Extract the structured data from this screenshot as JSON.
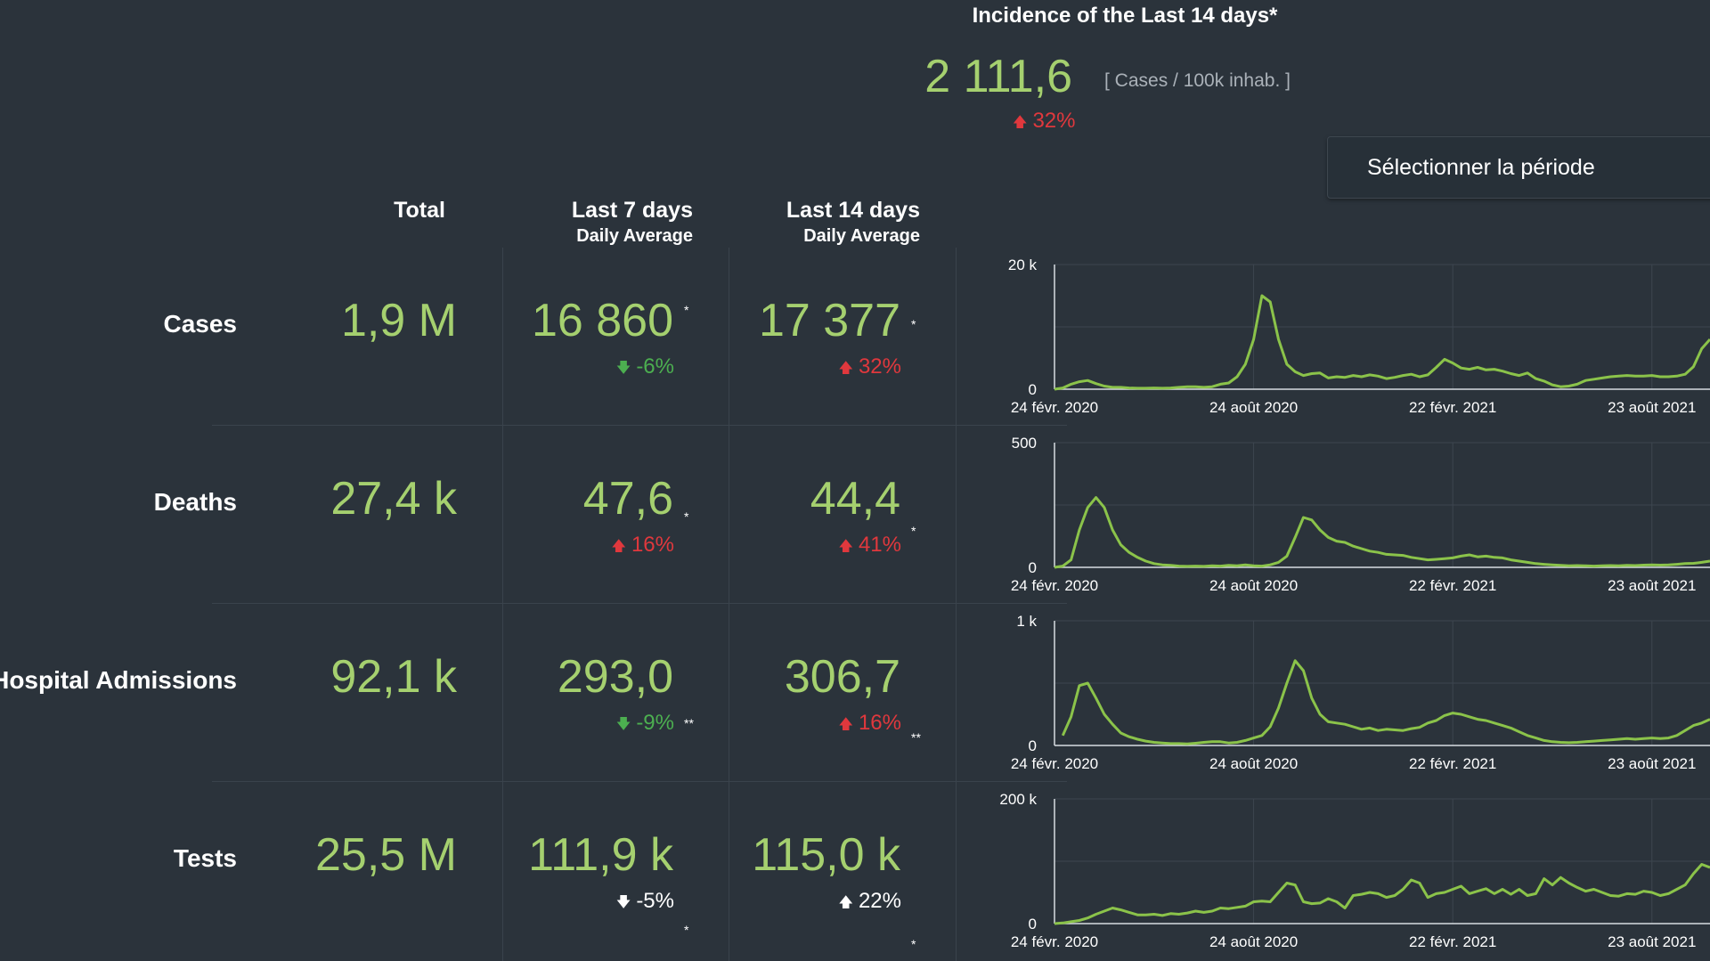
{
  "incidence": {
    "title": "Incidence of the Last 14 days*",
    "value": "2 111,6",
    "unit": "[ Cases / 100k inhab. ]",
    "change": "32%",
    "change_dir": "up"
  },
  "period_button": {
    "label": "Sélectionner la période"
  },
  "columns": {
    "total": "Total",
    "last7": {
      "title": "Last 7 days",
      "subtitle": "Daily Average"
    },
    "last14": {
      "title": "Last 14 days",
      "subtitle": "Daily Average"
    }
  },
  "rows": [
    {
      "label": "Cases",
      "total": "1,9 M",
      "last7": {
        "value": "16 860",
        "mark": "*",
        "change": "-6%"
      },
      "last14": {
        "value": "17 377",
        "mark": "*",
        "change": "32%"
      }
    },
    {
      "label": "Deaths",
      "total": "27,4 k",
      "last7": {
        "value": "47,6",
        "mark": "*",
        "change": "16%"
      },
      "last14": {
        "value": "44,4",
        "mark": "*",
        "change": "41%"
      }
    },
    {
      "label": "Hospital Admissions",
      "total": "92,1 k",
      "last7": {
        "value": "293,0",
        "mark": "**",
        "change": "-9%"
      },
      "last14": {
        "value": "306,7",
        "mark": "**",
        "change": "16%"
      }
    },
    {
      "label": "Tests",
      "total": "25,5 M",
      "last7": {
        "value": "111,9 k",
        "mark": "*",
        "change": "-5%"
      },
      "last14": {
        "value": "115,0 k",
        "mark": "*",
        "change": "22%"
      }
    }
  ],
  "colors": {
    "background": "#2b333b",
    "value_green": "#a5d06f",
    "up_red": "#e0383d",
    "down_green": "#4caf50",
    "line": "#8bc34a"
  },
  "chart_data": [
    {
      "type": "line",
      "name": "Cases",
      "ylim": [
        0,
        20000
      ],
      "yticks": [
        "20 k",
        "0"
      ],
      "xticks": [
        "24 févr. 2020",
        "24 août 2020",
        "22 févr. 2021",
        "23 août 2021"
      ],
      "x": [
        0,
        2,
        4,
        6,
        8,
        10,
        12,
        14,
        16,
        18,
        20,
        22,
        24,
        26,
        28,
        30,
        32,
        34,
        36,
        38,
        40,
        42,
        44,
        46,
        48,
        50,
        52,
        54,
        56,
        58,
        60,
        62,
        64,
        66,
        68,
        70,
        72,
        74,
        76,
        78,
        80,
        82,
        84,
        86,
        88,
        90,
        92,
        94,
        96,
        98,
        100,
        102,
        104,
        106,
        108,
        110,
        112,
        114,
        116,
        118,
        120,
        122,
        124,
        126,
        128,
        130,
        132,
        134,
        136,
        138,
        140,
        142,
        144,
        146,
        148,
        150,
        152,
        154,
        156,
        158
      ],
      "values": [
        0,
        200,
        800,
        1200,
        1400,
        900,
        500,
        300,
        300,
        200,
        150,
        150,
        200,
        150,
        200,
        300,
        400,
        400,
        300,
        400,
        800,
        1000,
        2000,
        4000,
        8000,
        15000,
        14000,
        8000,
        4000,
        2800,
        2200,
        2500,
        2600,
        1800,
        2000,
        1900,
        2200,
        2000,
        2300,
        2100,
        1700,
        1900,
        2200,
        2400,
        2000,
        2300,
        3500,
        4800,
        4200,
        3400,
        3200,
        3500,
        3100,
        3200,
        2900,
        2500,
        2200,
        2600,
        1700,
        1300,
        700,
        400,
        500,
        800,
        1400,
        1600,
        1800,
        2000,
        2100,
        2200,
        2100,
        2100,
        2200,
        2000,
        2000,
        2100,
        2400,
        3600,
        6500,
        8000
      ]
    },
    {
      "type": "line",
      "name": "Deaths",
      "ylim": [
        0,
        500
      ],
      "yticks": [
        "500",
        "0"
      ],
      "xticks": [
        "24 févr. 2020",
        "24 août 2020",
        "22 févr. 2021",
        "23 août 2021"
      ],
      "x": [
        0,
        2,
        4,
        6,
        8,
        10,
        12,
        14,
        16,
        18,
        20,
        22,
        24,
        26,
        28,
        30,
        32,
        34,
        36,
        38,
        40,
        42,
        44,
        46,
        48,
        50,
        52,
        54,
        56,
        58,
        60,
        62,
        64,
        66,
        68,
        70,
        72,
        74,
        76,
        78,
        80,
        82,
        84,
        86,
        88,
        90,
        92,
        94,
        96,
        98,
        100,
        102,
        104,
        106,
        108,
        110,
        112,
        114,
        116,
        118,
        120,
        122,
        124,
        126,
        128,
        130,
        132,
        134,
        136,
        138,
        140,
        142,
        144,
        146,
        148,
        150,
        152,
        154,
        156,
        158
      ],
      "values": [
        0,
        5,
        30,
        150,
        240,
        280,
        240,
        150,
        90,
        60,
        40,
        25,
        15,
        10,
        8,
        5,
        4,
        5,
        4,
        6,
        5,
        8,
        6,
        10,
        6,
        5,
        10,
        20,
        45,
        120,
        200,
        190,
        150,
        120,
        105,
        100,
        85,
        75,
        65,
        60,
        52,
        50,
        48,
        40,
        35,
        30,
        32,
        35,
        38,
        45,
        50,
        42,
        45,
        40,
        38,
        30,
        25,
        20,
        15,
        12,
        10,
        8,
        6,
        7,
        6,
        5,
        6,
        7,
        6,
        8,
        7,
        9,
        10,
        9,
        10,
        12,
        15,
        16,
        20,
        25
      ]
    },
    {
      "type": "line",
      "name": "Hospital Admissions",
      "ylim": [
        0,
        1000
      ],
      "yticks": [
        "1 k",
        "0"
      ],
      "xticks": [
        "24 févr. 2020",
        "24 août 2020",
        "22 févr. 2021",
        "23 août 2021"
      ],
      "x": [
        2,
        4,
        6,
        8,
        10,
        12,
        14,
        16,
        18,
        20,
        22,
        24,
        26,
        28,
        30,
        32,
        34,
        36,
        38,
        40,
        42,
        44,
        46,
        48,
        50,
        52,
        54,
        56,
        58,
        60,
        62,
        64,
        66,
        68,
        70,
        72,
        74,
        76,
        78,
        80,
        82,
        84,
        86,
        88,
        90,
        92,
        94,
        96,
        98,
        100,
        102,
        104,
        106,
        108,
        110,
        112,
        114,
        116,
        118,
        120,
        122,
        124,
        126,
        128,
        130,
        132,
        134,
        136,
        138,
        140,
        142,
        144,
        146,
        148,
        150,
        152,
        154,
        156,
        158
      ],
      "values": [
        80,
        230,
        480,
        500,
        380,
        250,
        170,
        100,
        70,
        50,
        35,
        25,
        20,
        15,
        15,
        12,
        18,
        25,
        30,
        30,
        20,
        25,
        40,
        60,
        80,
        150,
        300,
        500,
        680,
        600,
        380,
        250,
        190,
        180,
        170,
        150,
        130,
        140,
        120,
        130,
        125,
        120,
        135,
        145,
        180,
        200,
        240,
        260,
        250,
        230,
        210,
        200,
        180,
        160,
        140,
        110,
        80,
        60,
        40,
        30,
        25,
        22,
        25,
        30,
        35,
        40,
        45,
        50,
        55,
        50,
        55,
        60,
        55,
        60,
        80,
        120,
        160,
        180,
        210
      ]
    },
    {
      "type": "line",
      "name": "Tests",
      "ylim": [
        0,
        200000
      ],
      "yticks": [
        "200 k",
        "0"
      ],
      "xticks": [
        "24 févr. 2020",
        "24 août 2020",
        "22 févr. 2021",
        "23 août 2021"
      ],
      "x": [
        0,
        2,
        4,
        6,
        8,
        10,
        12,
        14,
        16,
        18,
        20,
        22,
        24,
        26,
        28,
        30,
        32,
        34,
        36,
        38,
        40,
        42,
        44,
        46,
        48,
        50,
        52,
        54,
        56,
        58,
        60,
        62,
        64,
        66,
        68,
        70,
        72,
        74,
        76,
        78,
        80,
        82,
        84,
        86,
        88,
        90,
        92,
        94,
        96,
        98,
        100,
        102,
        104,
        106,
        108,
        110,
        112,
        114,
        116,
        118,
        120,
        122,
        124,
        126,
        128,
        130,
        132,
        134,
        136,
        138,
        140,
        142,
        144,
        146,
        148,
        150,
        152,
        154,
        156,
        158
      ],
      "values": [
        0,
        1000,
        3000,
        5000,
        9000,
        15000,
        20000,
        25000,
        22000,
        18000,
        14000,
        14000,
        15000,
        13000,
        16000,
        15000,
        17000,
        20000,
        18000,
        20000,
        25000,
        24000,
        26000,
        28000,
        35000,
        36000,
        35000,
        50000,
        65000,
        62000,
        35000,
        32000,
        33000,
        40000,
        35000,
        25000,
        45000,
        47000,
        50000,
        48000,
        42000,
        45000,
        55000,
        70000,
        65000,
        42000,
        48000,
        50000,
        55000,
        60000,
        48000,
        52000,
        56000,
        48000,
        55000,
        47000,
        55000,
        45000,
        48000,
        72000,
        62000,
        74000,
        65000,
        58000,
        52000,
        55000,
        50000,
        45000,
        44000,
        48000,
        47000,
        52000,
        50000,
        45000,
        48000,
        55000,
        62000,
        80000,
        95000,
        90000
      ]
    }
  ]
}
